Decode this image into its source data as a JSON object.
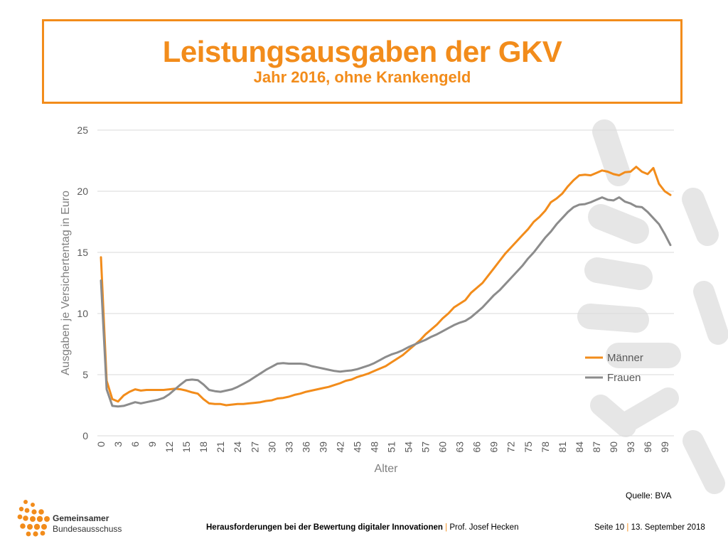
{
  "slide": {
    "title": "Leistungsausgaben der GKV",
    "subtitle": "Jahr 2016, ohne Krankengeld",
    "source": "Quelle: BVA",
    "logo_line1": "Gemeinsamer",
    "logo_line2": "Bundesausschuss",
    "footer_title": "Herausforderungen bei der Bewertung digitaler Innovationen",
    "footer_sep": "|",
    "footer_author": "Prof. Josef Hecken",
    "footer_page": "Seite 10",
    "footer_date": "13. September 2018",
    "accent_color": "#f28c1b"
  },
  "chart_data": {
    "type": "line",
    "title": "",
    "xlabel": "Alter",
    "ylabel": "Ausgaben je Versichertentag in Euro",
    "ylim": [
      0,
      25
    ],
    "yticks": [
      0,
      5,
      10,
      15,
      20,
      25
    ],
    "xlim": [
      0,
      100
    ],
    "xticks": [
      0,
      3,
      6,
      9,
      12,
      15,
      18,
      21,
      24,
      27,
      30,
      33,
      36,
      39,
      42,
      45,
      48,
      51,
      54,
      57,
      60,
      63,
      66,
      69,
      72,
      75,
      78,
      81,
      84,
      87,
      90,
      93,
      96,
      99
    ],
    "grid": true,
    "legend_position": "right",
    "x": [
      0,
      1,
      2,
      3,
      4,
      5,
      6,
      7,
      8,
      9,
      10,
      11,
      12,
      13,
      14,
      15,
      16,
      17,
      18,
      19,
      20,
      21,
      22,
      23,
      24,
      25,
      26,
      27,
      28,
      29,
      30,
      31,
      32,
      33,
      34,
      35,
      36,
      37,
      38,
      39,
      40,
      41,
      42,
      43,
      44,
      45,
      46,
      47,
      48,
      49,
      50,
      51,
      52,
      53,
      54,
      55,
      56,
      57,
      58,
      59,
      60,
      61,
      62,
      63,
      64,
      65,
      66,
      67,
      68,
      69,
      70,
      71,
      72,
      73,
      74,
      75,
      76,
      77,
      78,
      79,
      80,
      81,
      82,
      83,
      84,
      85,
      86,
      87,
      88,
      89,
      90,
      91,
      92,
      93,
      94,
      95,
      96,
      97,
      98,
      99,
      100
    ],
    "series": [
      {
        "name": "Männer",
        "color": "#f28c1b",
        "values": [
          14.6,
          4.5,
          3.0,
          2.8,
          3.3,
          3.6,
          3.8,
          3.7,
          3.75,
          3.75,
          3.75,
          3.75,
          3.8,
          3.85,
          3.8,
          3.7,
          3.55,
          3.45,
          3.0,
          2.65,
          2.6,
          2.6,
          2.5,
          2.55,
          2.6,
          2.6,
          2.65,
          2.7,
          2.75,
          2.85,
          2.9,
          3.05,
          3.1,
          3.2,
          3.35,
          3.45,
          3.6,
          3.7,
          3.8,
          3.9,
          4.0,
          4.15,
          4.3,
          4.5,
          4.6,
          4.8,
          4.95,
          5.1,
          5.3,
          5.5,
          5.7,
          6.0,
          6.3,
          6.6,
          7.0,
          7.4,
          7.8,
          8.3,
          8.7,
          9.1,
          9.6,
          10.0,
          10.5,
          10.8,
          11.1,
          11.7,
          12.1,
          12.5,
          13.1,
          13.7,
          14.3,
          14.9,
          15.4,
          15.9,
          16.4,
          16.9,
          17.5,
          17.9,
          18.4,
          19.1,
          19.4,
          19.8,
          20.4,
          20.9,
          21.3,
          21.35,
          21.3,
          21.5,
          21.7,
          21.6,
          21.4,
          21.3,
          21.55,
          21.6,
          22.0,
          21.6,
          21.4,
          21.9,
          20.6,
          20.0,
          19.7
        ]
      },
      {
        "name": "Frauen",
        "color": "#8c8c8c",
        "values": [
          12.7,
          3.8,
          2.45,
          2.4,
          2.45,
          2.6,
          2.75,
          2.65,
          2.75,
          2.85,
          2.95,
          3.1,
          3.4,
          3.8,
          4.2,
          4.55,
          4.6,
          4.55,
          4.2,
          3.75,
          3.65,
          3.6,
          3.7,
          3.8,
          4.0,
          4.25,
          4.5,
          4.8,
          5.1,
          5.4,
          5.65,
          5.9,
          5.95,
          5.9,
          5.9,
          5.9,
          5.85,
          5.7,
          5.6,
          5.5,
          5.4,
          5.3,
          5.25,
          5.3,
          5.35,
          5.45,
          5.6,
          5.75,
          5.95,
          6.2,
          6.45,
          6.65,
          6.8,
          7.0,
          7.25,
          7.45,
          7.65,
          7.85,
          8.1,
          8.3,
          8.55,
          8.8,
          9.05,
          9.25,
          9.4,
          9.7,
          10.1,
          10.5,
          11.0,
          11.5,
          11.9,
          12.4,
          12.9,
          13.4,
          13.9,
          14.5,
          15.0,
          15.6,
          16.2,
          16.7,
          17.3,
          17.8,
          18.3,
          18.7,
          18.9,
          18.95,
          19.1,
          19.3,
          19.5,
          19.3,
          19.25,
          19.5,
          19.15,
          19.0,
          18.75,
          18.7,
          18.3,
          17.8,
          17.3,
          16.5,
          15.6
        ]
      }
    ]
  }
}
